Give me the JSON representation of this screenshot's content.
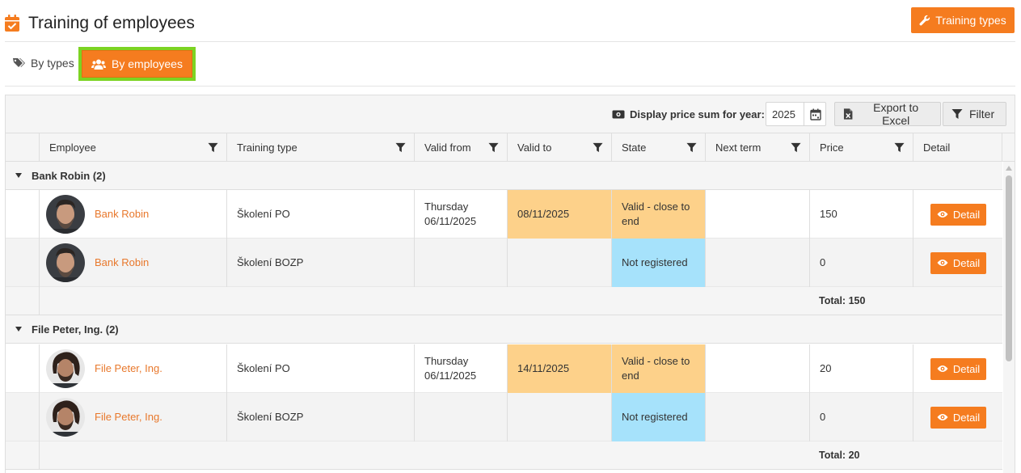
{
  "header": {
    "title": "Training of employees",
    "training_types_button": "Training types"
  },
  "tabs": [
    {
      "label": "By types",
      "icon": "tags-icon",
      "active": false
    },
    {
      "label": "By employees",
      "icon": "users-icon",
      "active": true
    }
  ],
  "toolbar": {
    "price_sum_label": "Display price sum for year:",
    "year": "2025",
    "export_label": "Export to Excel",
    "filter_label": "Filter"
  },
  "columns": [
    "Employee",
    "Training type",
    "Valid from",
    "Valid to",
    "State",
    "Next term",
    "Price",
    "Detail"
  ],
  "groups": [
    {
      "title": "Bank Robin (2)",
      "rows": [
        {
          "employee": "Bank Robin",
          "training_type": "Školení PO",
          "valid_from_day": "Thursday",
          "valid_from_date": "06/11/2025",
          "valid_to": "08/11/2025",
          "state": "Valid - close to end",
          "state_color": "#fdd18a",
          "next_term": "",
          "price": "150",
          "detail": "Detail"
        },
        {
          "employee": "Bank Robin",
          "training_type": "Školení BOZP",
          "valid_from_day": "",
          "valid_from_date": "",
          "valid_to": "",
          "state": "Not registered",
          "state_color": "#a6e2fb",
          "next_term": "",
          "price": "0",
          "detail": "Detail"
        }
      ],
      "total": "Total: 150"
    },
    {
      "title": "File Peter, Ing. (2)",
      "rows": [
        {
          "employee": "File Peter, Ing.",
          "training_type": "Školení PO",
          "valid_from_day": "Thursday",
          "valid_from_date": "06/11/2025",
          "valid_to": "14/11/2025",
          "state": "Valid - close to end",
          "state_color": "#fdd18a",
          "next_term": "",
          "price": "20",
          "detail": "Detail"
        },
        {
          "employee": "File Peter, Ing.",
          "training_type": "Školení BOZP",
          "valid_from_day": "",
          "valid_from_date": "",
          "valid_to": "",
          "state": "Not registered",
          "state_color": "#a6e2fb",
          "next_term": "",
          "price": "0",
          "detail": "Detail"
        }
      ],
      "total": "Total: 20"
    }
  ],
  "colors": {
    "accent": "#f57c1f",
    "link": "#e8782c",
    "highlight_border": "#7cd322",
    "state_close_to_end": "#fdd18a",
    "state_not_registered": "#a6e2fb"
  }
}
